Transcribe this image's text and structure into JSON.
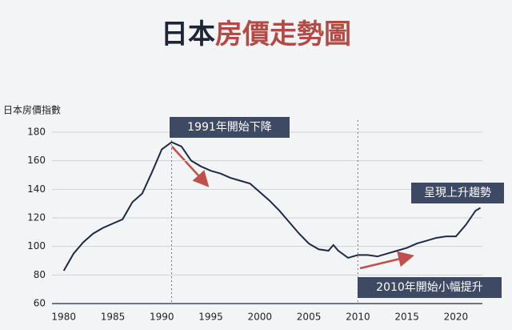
{
  "chart_data": {
    "type": "line",
    "title_parts": [
      "日本",
      "房價走勢圖"
    ],
    "title_colors": [
      "#1e2535",
      "#b44a44"
    ],
    "y_axis_label": "日本房價指數",
    "series": [
      {
        "color": "#1f2a44",
        "x": [
          1980,
          1981,
          1982,
          1983,
          1984,
          1985,
          1986,
          1987,
          1988,
          1989,
          1990,
          1991,
          1992,
          1993,
          1994,
          1995,
          1996,
          1997,
          1998,
          1999,
          2000,
          2001,
          2002,
          2003,
          2004,
          2005,
          2006,
          2007,
          2007.5,
          2008,
          2009,
          2010,
          2011,
          2012,
          2013,
          2014,
          2015,
          2016,
          2017,
          2018,
          2019,
          2020,
          2021,
          2022,
          2022.5
        ],
        "values": [
          83,
          95,
          103,
          109,
          113,
          116,
          119,
          131,
          137,
          152,
          168,
          173,
          170,
          160,
          156,
          153,
          151,
          148,
          146,
          144,
          138,
          132,
          125,
          117,
          109,
          102,
          98,
          97,
          101,
          97,
          92,
          94,
          94,
          93,
          95,
          97,
          99,
          102,
          104,
          106,
          107,
          107,
          115,
          125,
          127
        ]
      }
    ],
    "xlim": [
      1978.8,
      2022.7
    ],
    "xticks": [
      1980,
      1985,
      1990,
      1995,
      2000,
      2005,
      2010,
      2015,
      2020
    ],
    "ylim": [
      60,
      180
    ],
    "yticks": [
      60,
      80,
      100,
      120,
      140,
      160,
      180
    ],
    "grid": true,
    "reference_lines": [
      1991,
      2010
    ],
    "annotations": [
      "1991年開始下降",
      "2010年開始小幅提升",
      "呈現上升趨勢"
    ]
  }
}
